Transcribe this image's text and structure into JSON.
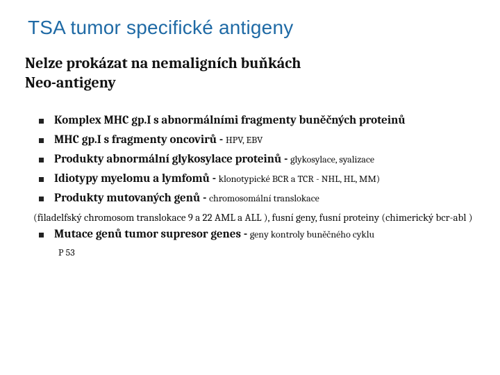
{
  "slide": {
    "title": {
      "text": "TSA tumor specifické antigeny",
      "color": "#1f6aa5",
      "fontsize": 28
    },
    "subtitle": {
      "line1": "Nelze prokázat na nemaligních buňkách",
      "line2": "Neo-antigeny",
      "fontsize": 22
    },
    "bullets": [
      {
        "bold": "Komplex MHC gp.I s abnormálními fragmenty buněčných proteinů",
        "plain": ""
      },
      {
        "bold": "MHC gp.I s fragmenty oncovirů - ",
        "plain": "HPV, EBV"
      },
      {
        "bold": "Produkty abnormální glykosylace proteinů - ",
        "plain": "glykosylace, syalizace"
      },
      {
        "bold": "Idiotypy myelomu a lymfomů - ",
        "plain": "klonotypické BCR a TCR - NHL, HL, MM)"
      },
      {
        "bold": "Produkty mutovaných genů - ",
        "plain": "chromosomální translokace"
      }
    ],
    "bullet_fontsize_bold": 17,
    "bullet_fontsize_plain": 14,
    "note": {
      "text": "  (filadelfský chromosom translokace 9 a 22 AML a ALL ), fusní geny, fusní  proteiny (chimerický bcr-abl )",
      "fontsize": 15
    },
    "last_bullet": {
      "bold": "Mutace genů tumor supresor genes - ",
      "plain": "geny kontroly buněčného cyklu",
      "sub": "P 53"
    },
    "text_color": "#111111",
    "background_color": "#ffffff"
  }
}
